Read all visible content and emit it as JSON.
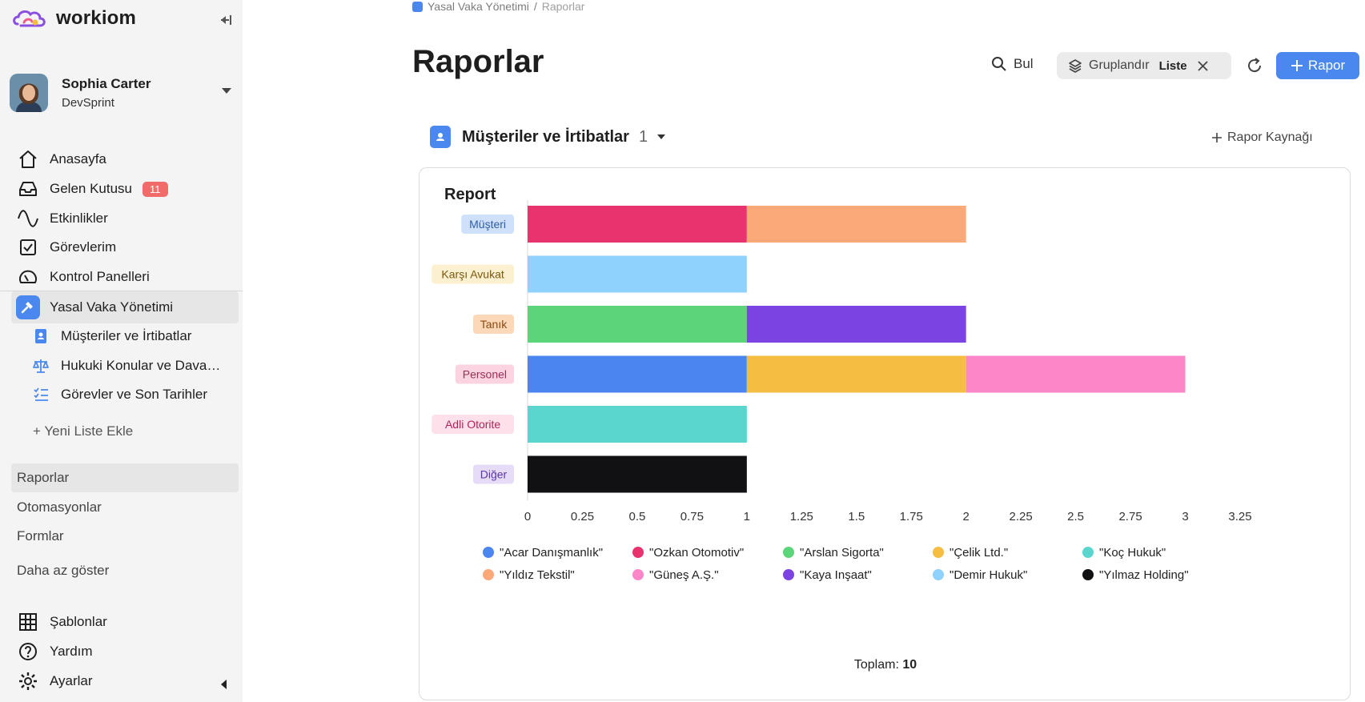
{
  "app": {
    "name": "workiom"
  },
  "user": {
    "name": "Sophia Carter",
    "org": "DevSprint"
  },
  "nav": {
    "items": [
      {
        "label": "Anasayfa",
        "icon": "home-icon"
      },
      {
        "label": "Gelen Kutusu",
        "icon": "inbox-icon",
        "badge": "11"
      },
      {
        "label": "Etkinlikler",
        "icon": "activity-icon"
      },
      {
        "label": "Görevlerim",
        "icon": "checkbox-icon"
      },
      {
        "label": "Kontrol Panelleri",
        "icon": "gauge-icon"
      }
    ],
    "space": {
      "label": "Yasal Vaka Yönetimi",
      "icon": "gavel-icon"
    },
    "lists": [
      {
        "label": "Müşteriler ve İrtibatlar",
        "icon": "contact-book-icon"
      },
      {
        "label": "Hukuki Konular ve Davalar",
        "icon": "scales-icon"
      },
      {
        "label": "Görevler ve Son Tarihler",
        "icon": "checklist-icon"
      }
    ],
    "add_list": "+ Yeni Liste Ekle",
    "sections": [
      "Raporlar",
      "Otomasyonlar",
      "Formlar"
    ],
    "show_less": "Daha az göster",
    "bottom": [
      {
        "label": "Şablonlar",
        "icon": "grid-icon"
      },
      {
        "label": "Yardım",
        "icon": "help-icon"
      },
      {
        "label": "Ayarlar",
        "icon": "gear-icon"
      }
    ]
  },
  "breadcrumb": {
    "space": "Yasal Vaka Yönetimi",
    "separator": "/",
    "current": "Raporlar"
  },
  "page": {
    "title": "Raporlar"
  },
  "toolbar": {
    "find": "Bul",
    "group_label": "Gruplandır",
    "group_value": "Liste",
    "new_report": "Rapor"
  },
  "source": {
    "title": "Müşteriler ve İrtibatlar",
    "count": "1",
    "add_source": "Rapor Kaynağı"
  },
  "report": {
    "title": "Report",
    "total_label": "Toplam:",
    "total_value": "10"
  },
  "chart_data": {
    "type": "bar",
    "orientation": "horizontal",
    "stacked": true,
    "categories": [
      "Müşteri",
      "Karşı Avukat",
      "Tanık",
      "Personel",
      "Adli Otorite",
      "Diğer"
    ],
    "category_colors": {
      "Müşteri": {
        "bg": "#cfe0fb",
        "fg": "#2f5fa8"
      },
      "Karşı Avukat": {
        "bg": "#fbf0cf",
        "fg": "#7a5a10"
      },
      "Tanık": {
        "bg": "#fcd7b8",
        "fg": "#8a4a14"
      },
      "Personel": {
        "bg": "#fbd3e1",
        "fg": "#9a2f55"
      },
      "Adli Otorite": {
        "bg": "#fde0ea",
        "fg": "#b0245a"
      },
      "Diğer": {
        "bg": "#e6dcf7",
        "fg": "#5b36a8"
      }
    },
    "series": [
      {
        "name": "\"Acar Danışmanlık\"",
        "color": "#4b86f0",
        "values": [
          0,
          0,
          0,
          1,
          0,
          0
        ]
      },
      {
        "name": "\"Ozkan Otomotiv\"",
        "color": "#e8336e",
        "values": [
          1,
          0,
          0,
          0,
          0,
          0
        ]
      },
      {
        "name": "\"Arslan Sigorta\"",
        "color": "#5bd47a",
        "values": [
          0,
          0,
          1,
          0,
          0,
          0
        ]
      },
      {
        "name": "\"Çelik Ltd.\"",
        "color": "#f5bd42",
        "values": [
          0,
          0,
          0,
          1,
          0,
          0
        ]
      },
      {
        "name": "\"Koç Hukuk\"",
        "color": "#5bd6cf",
        "values": [
          0,
          0,
          0,
          0,
          1,
          0
        ]
      },
      {
        "name": "\"Yıldız Tekstil\"",
        "color": "#fca97a",
        "values": [
          1,
          0,
          0,
          0,
          0,
          0
        ]
      },
      {
        "name": "\"Güneş A.Ş.\"",
        "color": "#fd86c8",
        "values": [
          0,
          0,
          0,
          1,
          0,
          0
        ]
      },
      {
        "name": "\"Kaya Inşaat\"",
        "color": "#7c43e3",
        "values": [
          0,
          0,
          1,
          0,
          0,
          0
        ]
      },
      {
        "name": "\"Demir Hukuk\"",
        "color": "#8fd2fd",
        "values": [
          0,
          1,
          0,
          0,
          0,
          0
        ]
      },
      {
        "name": "\"Yılmaz Holding\"",
        "color": "#111114",
        "values": [
          0,
          0,
          0,
          0,
          0,
          1
        ]
      }
    ],
    "stack_order": [
      [
        "\"Ozkan Otomotiv\"",
        "\"Yıldız Tekstil\""
      ],
      [
        "\"Demir Hukuk\""
      ],
      [
        "\"Arslan Sigorta\"",
        "\"Kaya Inşaat\""
      ],
      [
        "\"Acar Danışmanlık\"",
        "\"Çelik Ltd.\"",
        "\"Güneş A.Ş.\""
      ],
      [
        "\"Koç Hukuk\""
      ],
      [
        "\"Yılmaz Holding\""
      ]
    ],
    "x_ticks": [
      "0",
      "0.25",
      "0.5",
      "0.75",
      "1",
      "1.25",
      "1.5",
      "1.75",
      "2",
      "2.25",
      "2.5",
      "2.75",
      "3",
      "3.25"
    ],
    "xlim": [
      0,
      3.25
    ],
    "legend_position": "bottom"
  }
}
